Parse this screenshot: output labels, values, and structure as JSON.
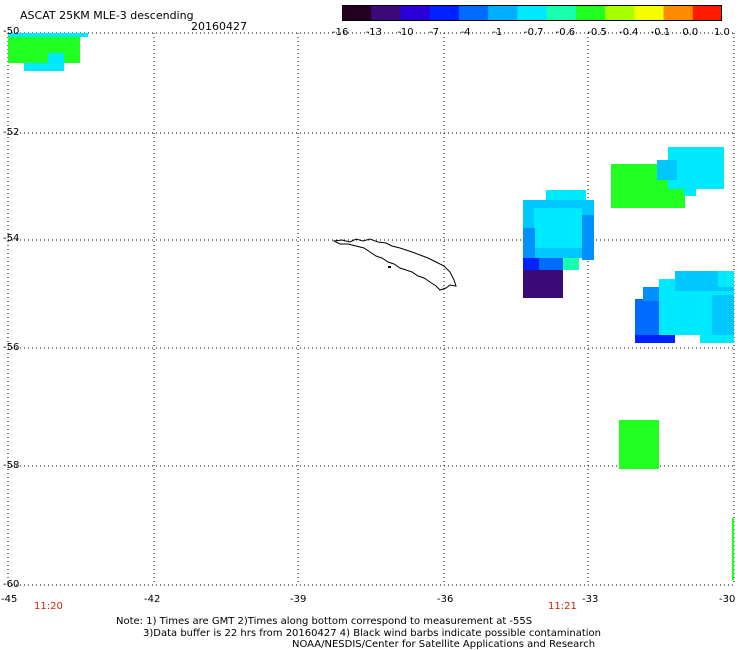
{
  "header": {
    "title": "ASCAT 25KM MLE-3 descending",
    "date": "20160427"
  },
  "colorbar": {
    "labels": [
      "-16",
      "-13",
      "-10",
      "-7",
      "-4",
      "-1",
      "-0.7",
      "-0.6",
      "-0.5",
      "-0.4",
      "-0.1",
      "0.0",
      "1.0"
    ],
    "colors": [
      "#230020",
      "#3a0a7a",
      "#2a00d8",
      "#0022ff",
      "#006cff",
      "#00b0ff",
      "#00eaff",
      "#18ffb0",
      "#20ff20",
      "#a8ff00",
      "#f6ff00",
      "#ff8c00",
      "#ff1a00"
    ]
  },
  "axes": {
    "lat_labels": [
      "-50",
      "-52",
      "-54",
      "-56",
      "-58",
      "-60"
    ],
    "lon_labels": [
      "-45",
      "-42",
      "-39",
      "-36",
      "-33",
      "-30"
    ]
  },
  "times": [
    "11:20",
    "11:21"
  ],
  "notes": {
    "line1": "Note: 1) Times are GMT 2)Times along bottom correspond to measurement at -55S",
    "line2": "3)Data buffer is 22 hrs from 20160427 4) Black wind barbs indicate possible contamination",
    "line3": "NOAA/NESDIS/Center for Satellite Applications and Research"
  }
}
